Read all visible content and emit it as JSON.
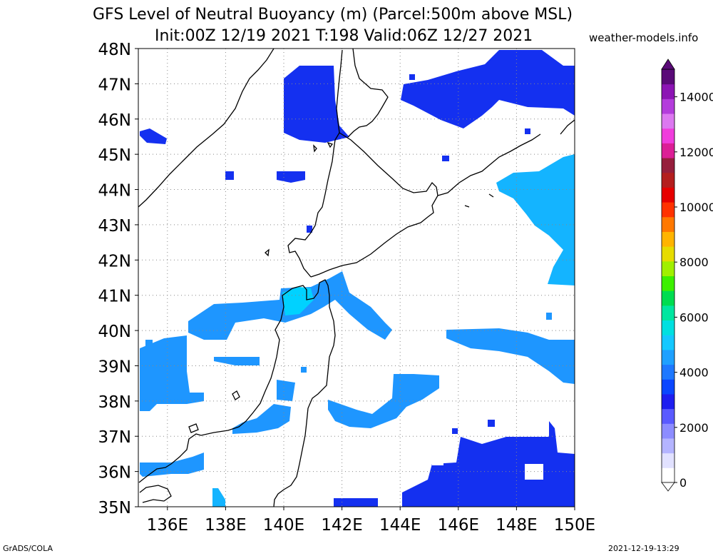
{
  "title_line1": "GFS Level of Neutral Buoyancy (m) (Parcel:500m above MSL)",
  "title_line2": "Init:00Z 12/19 2021 T:198 Valid:06Z 12/27 2021",
  "credit": "weather-models.info",
  "footer_left": "GrADS/COLA",
  "footer_right": "2021-12-19-13:29",
  "map": {
    "lat_labels": [
      "48N",
      "47N",
      "46N",
      "45N",
      "44N",
      "43N",
      "42N",
      "41N",
      "40N",
      "39N",
      "38N",
      "37N",
      "36N",
      "35N"
    ],
    "lon_labels": [
      "136E",
      "138E",
      "140E",
      "142E",
      "144E",
      "146E",
      "148E",
      "150E"
    ],
    "lat_range": [
      35,
      48
    ],
    "lon_range": [
      135,
      150
    ],
    "gridlines": "dotted",
    "fill_colors": {
      "deep_blue": "#1430f0",
      "mid_blue": "#1e5aff",
      "light_blue": "#1e96ff",
      "sky_blue": "#14b4ff",
      "cyan": "#00d2ff",
      "teal": "#28e0d8"
    }
  },
  "colorbar": {
    "tick_labels": [
      "0",
      "2000",
      "4000",
      "6000",
      "8000",
      "10000",
      "12000",
      "14000"
    ],
    "range": [
      0,
      15000
    ],
    "colors": [
      "#ffffff",
      "#e1e1ff",
      "#b4b4ff",
      "#8c8cff",
      "#5a5aff",
      "#1e1ef0",
      "#0a46ff",
      "#1e78ff",
      "#1ea0ff",
      "#14c8ff",
      "#00e0e0",
      "#00e6a0",
      "#00dc50",
      "#3cf000",
      "#a0f000",
      "#e6dc00",
      "#ffb400",
      "#ff7800",
      "#ff3200",
      "#e60000",
      "#b41e1e",
      "#961e3c",
      "#dc1e96",
      "#f03cdc",
      "#dc78f0",
      "#b43cdc",
      "#8c14b4",
      "#5a0a78"
    ]
  }
}
